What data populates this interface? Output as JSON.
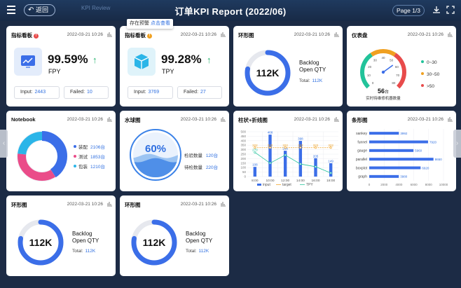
{
  "header": {
    "back_label": "返回",
    "ghost_title": "KPI Review",
    "title": "订单KPI Report (2022/06)",
    "page": "Page 1/3"
  },
  "tooltip": {
    "text": "存在预警",
    "link": "点击查看"
  },
  "colors": {
    "accent": "#2f6fe0",
    "up": "#22b26b",
    "warn": "#f0a020",
    "error": "#e84b4b"
  },
  "kpi_cards": [
    {
      "title": "指标看板",
      "badge": "!",
      "time": "2022-03-21 10:26",
      "value": "99.59%",
      "label": "FPY",
      "input_label": "Input:",
      "input_value": "2443",
      "failed_label": "Failed:",
      "failed_value": "10",
      "icon": "monitor-chart-icon"
    },
    {
      "title": "指标看板",
      "badge": "!",
      "time": "2022-03-21 10:26",
      "value": "99.28%",
      "label": "TPY",
      "input_label": "Input:",
      "input_value": "3769",
      "failed_label": "Failed:",
      "failed_value": "27",
      "icon": "cube-icon"
    }
  ],
  "ring_cards": [
    {
      "title": "环形图",
      "time": "2022-03-21 10:26",
      "value": "112K",
      "label1": "Backlog",
      "label2": "Open QTY",
      "total_label": "Total:",
      "total_value": "112K",
      "progress": 0.78
    },
    {
      "title": "环形图",
      "time": "2022-03-21 10:26",
      "value": "112K",
      "label1": "Backlog",
      "label2": "Open QTY",
      "total_label": "Total:",
      "total_value": "112K",
      "progress": 0.78
    },
    {
      "title": "环形图",
      "time": "2022-03-21 10:26",
      "value": "112K",
      "label1": "Backlog",
      "label2": "Open QTY",
      "total_label": "Total:",
      "total_value": "112K",
      "progress": 0.78
    }
  ],
  "gauge": {
    "title": "仪表盘",
    "time": "2022-03-21 10:26",
    "ticks": [
      "0",
      "10",
      "20",
      "30",
      "40",
      "50",
      "60",
      "70",
      "80"
    ],
    "value": 56,
    "value_text": "56",
    "unit": "台",
    "caption": "实时待维修机器数量",
    "legend": [
      {
        "label": "0~30",
        "color": "#22c39a"
      },
      {
        "label": "30~50",
        "color": "#f0a020"
      },
      {
        "label": ">50",
        "color": "#e84b4b"
      }
    ]
  },
  "notebook": {
    "title": "Notebook",
    "time": "2022-03-21 10:26",
    "items": [
      {
        "label": "装配",
        "value": "2106台",
        "num": 2106,
        "color": "#3b6ee8"
      },
      {
        "label": "测试",
        "value": "1853台",
        "num": 1853,
        "color": "#ea4c89"
      },
      {
        "label": "包装",
        "value": "1210台",
        "num": 1210,
        "color": "#2bb5e8"
      }
    ]
  },
  "water": {
    "title": "水球图",
    "time": "2022-03-21 10:26",
    "percent_text": "60%",
    "level": 0.6,
    "rows": [
      {
        "label": "检验数量",
        "value": "120台"
      },
      {
        "label": "待检数量",
        "value": "220台"
      }
    ]
  },
  "combo": {
    "title": "柱状+折线图",
    "time": "2022-03-21 10:26"
  },
  "hbar": {
    "title": "条形图",
    "time": "2022-03-21 10:26"
  },
  "chart_data": [
    {
      "type": "bar",
      "title": "柱状+折线图",
      "categories": [
        "8:00",
        "10:00",
        "12:00",
        "14:00",
        "16:00",
        "18:00"
      ],
      "ylim": [
        0,
        500
      ],
      "yticks": [
        "0",
        "50",
        "100",
        "150",
        "200",
        "250",
        "300",
        "350",
        "400",
        "450",
        "500"
      ],
      "series": [
        {
          "name": "input",
          "type": "bar",
          "color": "#3b6ee8",
          "values": [
            108,
            468,
            288,
            398,
            205,
            149
          ]
        },
        {
          "name": "target",
          "type": "line",
          "color": "#f0a020",
          "values": [
            322,
            322,
            322,
            322,
            322,
            322
          ]
        },
        {
          "name": "TPY",
          "type": "line",
          "color": "#22c39a",
          "values": [
            270,
            150,
            240,
            140,
            110,
            40
          ]
        }
      ],
      "data_labels": {
        "input": [
          "108",
          "468",
          "288",
          "398",
          "205",
          "149"
        ],
        "target": [
          "322",
          "322",
          "322",
          "322",
          "322",
          "322"
        ],
        "TPY": [
          "270",
          "",
          "",
          "",
          "",
          ""
        ]
      }
    },
    {
      "type": "bar",
      "orientation": "horizontal",
      "title": "条形图",
      "categories": [
        "sankey",
        "funnel",
        "gauge",
        "parallel",
        "boxplot",
        "graph"
      ],
      "values": [
        3992,
        7920,
        5960,
        8650,
        6920,
        3980
      ],
      "xlim": [
        0,
        10000
      ],
      "xticks": [
        "0",
        "2000",
        "4000",
        "6000",
        "8000",
        "10000"
      ],
      "color": "#3b6ee8"
    }
  ]
}
